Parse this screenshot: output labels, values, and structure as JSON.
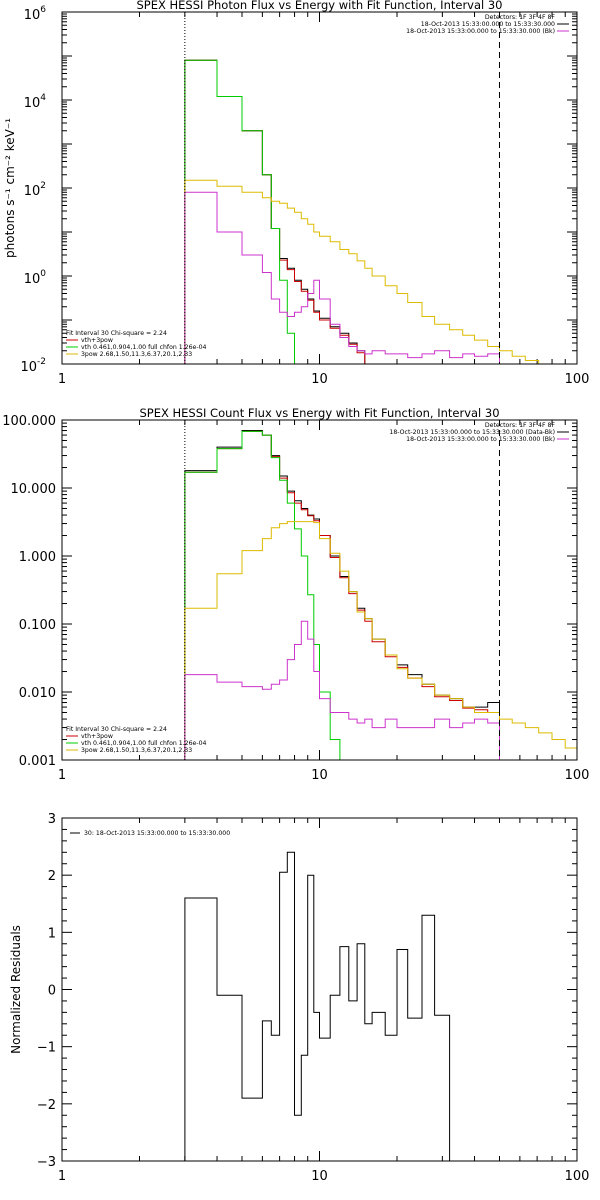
{
  "chart_data": [
    {
      "type": "line",
      "title": "SPEX HESSI Photon Flux vs Energy with Fit Function, Interval 30",
      "ylabel": "photons s⁻¹ cm⁻² keV⁻¹",
      "xlabel": "",
      "xscale": "log",
      "yscale": "log",
      "xlim": [
        1,
        100
      ],
      "ylim": [
        0.01,
        1000000
      ],
      "xticks": [
        {
          "v": 1,
          "label": "1"
        },
        {
          "v": 10,
          "label": "10"
        },
        {
          "v": 100,
          "label": "100"
        }
      ],
      "yticks": [
        {
          "v": 0.01,
          "base": "10",
          "exp": "-2"
        },
        {
          "v": 1,
          "base": "10",
          "exp": "0"
        },
        {
          "v": 100,
          "base": "10",
          "exp": "2"
        },
        {
          "v": 10000,
          "base": "10",
          "exp": "4"
        },
        {
          "v": 1000000,
          "base": "10",
          "exp": "6"
        }
      ],
      "vlines": [
        {
          "x": 3,
          "style": "dotted"
        },
        {
          "x": 50,
          "style": "dashed"
        }
      ],
      "legend_top": {
        "position": "top-right",
        "header": "Detectors: 1F 3F 4F 8F",
        "entries": [
          {
            "text": "18-Oct-2013 15:33:00.000 to 15:33:30.000",
            "color": "#000000"
          },
          {
            "text": "18-Oct-2013 15:33:00.000 to 15:33:30.000 (Bk)",
            "color": "#cc33cc"
          }
        ]
      },
      "legend_bottom": {
        "position": "bottom-left",
        "header": "Fit Interval 30   Chi-square = 2.24",
        "entries": [
          {
            "text": "vth+3pow",
            "color": "#cc0000"
          },
          {
            "text": "vth 0.461,0.904,1.00  full chfon 1.26e-04",
            "color": "#00cc00"
          },
          {
            "text": "3pow 2.68,1.50,11.3,6.37,20.1,2.33",
            "color": "#ddbb00"
          }
        ]
      },
      "edges": [
        3,
        3.5,
        4,
        4.5,
        5,
        5.5,
        6,
        6.5,
        7,
        7.5,
        8,
        8.5,
        9,
        9.5,
        10,
        11,
        12,
        13,
        14,
        15,
        16,
        18,
        20,
        22,
        25,
        28,
        32,
        36,
        40,
        45,
        50,
        56,
        63,
        71,
        80,
        90,
        100
      ],
      "series": [
        {
          "name": "data",
          "color": "#000000",
          "width": 1,
          "values": [
            80000,
            80000,
            12000,
            12000,
            2000,
            2000,
            200,
            12,
            2.5,
            1.5,
            0.8,
            0.5,
            0.3,
            0.16,
            0.11,
            0.07,
            0.05,
            0.03,
            0.02,
            null,
            null,
            null,
            null,
            null,
            null,
            null,
            null,
            null,
            null,
            null,
            null,
            null,
            null,
            null,
            null,
            null
          ]
        },
        {
          "name": "vth+3pow",
          "color": "#cc0000",
          "width": 1,
          "values": [
            80000,
            80000,
            12000,
            12000,
            2000,
            2000,
            200,
            12,
            2.3,
            1.4,
            0.75,
            0.45,
            0.28,
            0.15,
            0.1,
            0.065,
            0.045,
            0.028,
            0.018,
            null,
            null,
            null,
            null,
            null,
            null,
            null,
            null,
            null,
            null,
            null,
            null,
            null,
            null,
            null,
            null,
            null
          ]
        },
        {
          "name": "vth",
          "color": "#00cc00",
          "width": 1,
          "values": [
            80000,
            80000,
            12000,
            12000,
            2000,
            2000,
            200,
            12,
            0.8,
            0.05,
            0.01,
            0.01,
            null,
            null,
            null,
            null,
            null,
            null,
            null,
            null,
            null,
            null,
            null,
            null,
            null,
            null,
            null,
            null,
            null,
            null,
            null,
            null,
            null,
            null,
            null,
            null
          ]
        },
        {
          "name": "3pow",
          "color": "#ddbb00",
          "width": 1,
          "values": [
            150,
            150,
            110,
            110,
            80,
            80,
            60,
            50,
            45,
            35,
            28,
            20,
            15,
            10,
            8,
            6,
            4,
            3.2,
            2.2,
            1.5,
            1,
            0.6,
            0.4,
            0.25,
            0.12,
            0.08,
            0.06,
            0.045,
            0.035,
            0.025,
            0.02,
            0.015,
            0.012,
            0.01,
            0.01,
            0.01
          ]
        },
        {
          "name": "background",
          "color": "#cc33cc",
          "width": 1,
          "values": [
            80,
            80,
            10,
            10,
            3,
            3,
            1.2,
            0.3,
            0.15,
            0.12,
            0.15,
            0.2,
            0.4,
            0.8,
            0.3,
            0.08,
            0.04,
            0.025,
            0.02,
            0.017,
            0.02,
            0.017,
            0.017,
            0.014,
            0.017,
            0.02,
            0.014,
            0.017,
            0.015,
            0.017,
            null,
            null,
            null,
            null,
            null,
            null
          ]
        }
      ]
    },
    {
      "type": "line",
      "title": "SPEX HESSI Count Flux vs Energy with Fit Function, Interval 30",
      "xlabel": "",
      "ylabel": "",
      "xscale": "log",
      "yscale": "log",
      "xlim": [
        1,
        100
      ],
      "ylim": [
        0.001,
        100
      ],
      "xticks": [
        {
          "v": 1,
          "label": "1"
        },
        {
          "v": 10,
          "label": "10"
        },
        {
          "v": 100,
          "label": "100"
        }
      ],
      "yticks": [
        {
          "v": 0.001,
          "label": "0.001"
        },
        {
          "v": 0.01,
          "label": "0.010"
        },
        {
          "v": 0.1,
          "label": "0.100"
        },
        {
          "v": 1,
          "label": "1.000"
        },
        {
          "v": 10,
          "label": "10.000"
        },
        {
          "v": 100,
          "label": "100.000"
        }
      ],
      "vlines": [
        {
          "x": 3,
          "style": "dotted"
        },
        {
          "x": 50,
          "style": "dashed"
        }
      ],
      "legend_top": {
        "position": "top-right",
        "header": "Detectors: 1F 3F 4F 8F",
        "entries": [
          {
            "text": "18-Oct-2013 15:33:00.000 to 15:33:30.000 (Data-Bk)",
            "color": "#000000"
          },
          {
            "text": "18-Oct-2013 15:33:00.000 to 15:33:30.000 (Bk)",
            "color": "#cc33cc"
          }
        ]
      },
      "legend_bottom": {
        "position": "bottom-left",
        "header": "Fit Interval 30   Chi-square = 2.24",
        "entries": [
          {
            "text": "vth+3pow",
            "color": "#cc0000"
          },
          {
            "text": "vth 0.461,0.904,1.00  full chfon 1.26e-04",
            "color": "#00cc00"
          },
          {
            "text": "3pow 2.68,1.50,11.3,6.37,20.1,2.33",
            "color": "#ddbb00"
          }
        ]
      },
      "edges": [
        3,
        3.5,
        4,
        4.5,
        5,
        5.5,
        6,
        6.5,
        7,
        7.5,
        8,
        8.5,
        9,
        9.5,
        10,
        11,
        12,
        13,
        14,
        15,
        16,
        18,
        20,
        22,
        25,
        28,
        32,
        36,
        40,
        45,
        50,
        56,
        63,
        71,
        80,
        90,
        100
      ],
      "series": [
        {
          "name": "data",
          "color": "#000000",
          "width": 1,
          "values": [
            18,
            18,
            40,
            40,
            70,
            70,
            60,
            30,
            15,
            9,
            6.5,
            5,
            4,
            3.5,
            2,
            1,
            0.5,
            0.3,
            0.17,
            0.12,
            0.06,
            0.035,
            0.025,
            0.018,
            0.013,
            0.009,
            0.008,
            0.006,
            0.006,
            0.007,
            null,
            null,
            null,
            null,
            null,
            null
          ]
        },
        {
          "name": "vth+3pow",
          "color": "#cc0000",
          "width": 1,
          "values": [
            17,
            17,
            38,
            38,
            68,
            68,
            60,
            29,
            14,
            8.5,
            6,
            4.8,
            3.9,
            3.3,
            2,
            0.95,
            0.48,
            0.28,
            0.16,
            0.11,
            0.055,
            0.033,
            0.023,
            0.016,
            0.012,
            0.0085,
            0.0075,
            0.0058,
            0.0055,
            0.005,
            null,
            null,
            null,
            null,
            null,
            null
          ]
        },
        {
          "name": "vth",
          "color": "#00cc00",
          "width": 1,
          "values": [
            17,
            17,
            38,
            38,
            68,
            68,
            60,
            28,
            13,
            6,
            2.5,
            1,
            0.27,
            0.05,
            0.01,
            0.002,
            0.001,
            null,
            null,
            null,
            null,
            null,
            null,
            null,
            null,
            null,
            null,
            null,
            null,
            null,
            null,
            null,
            null,
            null,
            null,
            null
          ]
        },
        {
          "name": "3pow",
          "color": "#ddbb00",
          "width": 1,
          "values": [
            0.17,
            0.17,
            0.55,
            0.55,
            1.2,
            1.2,
            1.8,
            2.6,
            3,
            3.2,
            3.2,
            3.2,
            3.2,
            3.1,
            1.8,
            1.1,
            0.6,
            0.3,
            0.15,
            0.12,
            0.06,
            0.035,
            0.022,
            0.016,
            0.013,
            0.009,
            0.008,
            0.006,
            0.005,
            0.005,
            0.004,
            0.0035,
            0.003,
            0.0025,
            0.002,
            0.0015
          ]
        },
        {
          "name": "background",
          "color": "#cc33cc",
          "width": 1,
          "values": [
            0.018,
            0.018,
            0.014,
            0.014,
            0.012,
            0.012,
            0.011,
            0.013,
            0.015,
            0.03,
            0.05,
            0.11,
            0.06,
            0.02,
            0.008,
            0.005,
            0.005,
            0.004,
            0.0035,
            0.004,
            0.003,
            0.004,
            0.003,
            0.003,
            0.003,
            0.004,
            0.003,
            0.0035,
            0.004,
            0.0035,
            null,
            null,
            null,
            null,
            null,
            null
          ]
        }
      ]
    },
    {
      "type": "line",
      "title": "",
      "xlabel": "",
      "ylabel": "Normalized Residuals",
      "xscale": "log",
      "yscale": "linear",
      "xlim": [
        1,
        100
      ],
      "ylim": [
        -3,
        3
      ],
      "xticks": [
        {
          "v": 1,
          "label": "1"
        },
        {
          "v": 10,
          "label": "10"
        },
        {
          "v": 100,
          "label": "100"
        }
      ],
      "yticks": [
        {
          "v": -3,
          "label": "−3"
        },
        {
          "v": -2,
          "label": "−2"
        },
        {
          "v": -1,
          "label": "−1"
        },
        {
          "v": 0,
          "label": "0"
        },
        {
          "v": 1,
          "label": "1"
        },
        {
          "v": 2,
          "label": "2"
        },
        {
          "v": 3,
          "label": "3"
        }
      ],
      "vlines": [],
      "legend_top": {
        "position": "top-left",
        "header": "",
        "entries": [
          {
            "text": "30: 18-Oct-2013 15:33:00.000 to 15:33:30.000",
            "color": "#000000"
          }
        ]
      },
      "legend_bottom": null,
      "edges": [
        3,
        3.5,
        4,
        4.5,
        5,
        5.5,
        6,
        6.5,
        7,
        7.5,
        8,
        8.5,
        9,
        9.5,
        10,
        11,
        12,
        13,
        14,
        15,
        16,
        18,
        20,
        22,
        25,
        28,
        32,
        36,
        40,
        45,
        50
      ],
      "series": [
        {
          "name": "residuals",
          "color": "#000000",
          "width": 1,
          "values": [
            1.6,
            1.6,
            -0.1,
            -0.1,
            -1.9,
            -1.9,
            -0.55,
            -0.8,
            2.05,
            2.4,
            -2.2,
            -1.15,
            2,
            -0.4,
            -0.85,
            -0.1,
            0.75,
            -0.2,
            0.8,
            -0.6,
            -0.4,
            -0.8,
            0.7,
            -0.5,
            1.3,
            -0.45,
            null,
            null,
            null,
            null
          ],
          "drop_ends": true
        }
      ]
    }
  ]
}
